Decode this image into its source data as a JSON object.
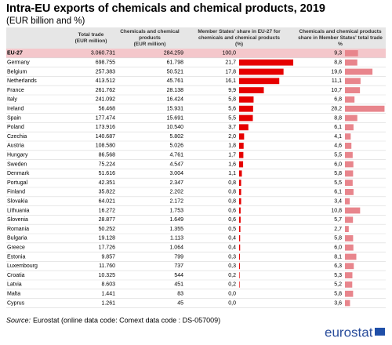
{
  "title": "Intra-EU exports of chemicals and chemical products, 2019",
  "subtitle": "(EUR billion and %)",
  "columns": [
    [
      "Total trade",
      "(EUR million)"
    ],
    [
      "Chemicals and chemical",
      "products",
      "(EUR million)"
    ],
    [
      "Member States' share in EU-27 for",
      "chemicals and chemical products",
      "(%)"
    ],
    [
      "Chemicals and chemical products",
      "share in Member States' total trade",
      "%"
    ]
  ],
  "share_xlim": [
    0,
    22
  ],
  "trade_share_xlim": [
    0,
    28.5
  ],
  "share_color": "#e60000",
  "trade_share_color": "#e8858c",
  "rows": [
    {
      "country": "EU-27",
      "aggregate": true,
      "total": "3.060.731",
      "chemicals": "284.259",
      "share": 100.0,
      "share_label": "100,0",
      "trade_share": 9.3,
      "trade_share_label": "9,3"
    },
    {
      "country": "Germany",
      "total": "698.755",
      "chemicals": "61.798",
      "share": 21.7,
      "share_label": "21,7",
      "trade_share": 8.8,
      "trade_share_label": "8,8"
    },
    {
      "country": "Belgium",
      "total": "257.383",
      "chemicals": "50.521",
      "share": 17.8,
      "share_label": "17,8",
      "trade_share": 19.6,
      "trade_share_label": "19,6"
    },
    {
      "country": "Netherlands",
      "total": "413.512",
      "chemicals": "45.761",
      "share": 16.1,
      "share_label": "16,1",
      "trade_share": 11.1,
      "trade_share_label": "11,1"
    },
    {
      "country": "France",
      "total": "261.762",
      "chemicals": "28.138",
      "share": 9.9,
      "share_label": "9,9",
      "trade_share": 10.7,
      "trade_share_label": "10,7"
    },
    {
      "country": "Italy",
      "total": "241.092",
      "chemicals": "16.424",
      "share": 5.8,
      "share_label": "5,8",
      "trade_share": 6.8,
      "trade_share_label": "6,8"
    },
    {
      "country": "Ireland",
      "total": "56.468",
      "chemicals": "15.931",
      "share": 5.6,
      "share_label": "5,6",
      "trade_share": 28.2,
      "trade_share_label": "28,2"
    },
    {
      "country": "Spain",
      "total": "177.474",
      "chemicals": "15.691",
      "share": 5.5,
      "share_label": "5,5",
      "trade_share": 8.8,
      "trade_share_label": "8,8"
    },
    {
      "country": "Poland",
      "total": "173.916",
      "chemicals": "10.540",
      "share": 3.7,
      "share_label": "3,7",
      "trade_share": 6.1,
      "trade_share_label": "6,1"
    },
    {
      "country": "Czechia",
      "total": "140.687",
      "chemicals": "5.802",
      "share": 2.0,
      "share_label": "2,0",
      "trade_share": 4.1,
      "trade_share_label": "4,1"
    },
    {
      "country": "Austria",
      "total": "108.580",
      "chemicals": "5.026",
      "share": 1.8,
      "share_label": "1,8",
      "trade_share": 4.6,
      "trade_share_label": "4,6"
    },
    {
      "country": "Hungary",
      "total": "86.568",
      "chemicals": "4.761",
      "share": 1.7,
      "share_label": "1,7",
      "trade_share": 5.5,
      "trade_share_label": "5,5"
    },
    {
      "country": "Sweden",
      "total": "75.224",
      "chemicals": "4.547",
      "share": 1.6,
      "share_label": "1,6",
      "trade_share": 6.0,
      "trade_share_label": "6,0"
    },
    {
      "country": "Denmark",
      "total": "51.616",
      "chemicals": "3.004",
      "share": 1.1,
      "share_label": "1,1",
      "trade_share": 5.8,
      "trade_share_label": "5,8"
    },
    {
      "country": "Portugal",
      "total": "42.351",
      "chemicals": "2.347",
      "share": 0.8,
      "share_label": "0,8",
      "trade_share": 5.5,
      "trade_share_label": "5,5"
    },
    {
      "country": "Finland",
      "total": "35.822",
      "chemicals": "2.202",
      "share": 0.8,
      "share_label": "0,8",
      "trade_share": 6.1,
      "trade_share_label": "6,1"
    },
    {
      "country": "Slovakia",
      "total": "64.021",
      "chemicals": "2.172",
      "share": 0.8,
      "share_label": "0,8",
      "trade_share": 3.4,
      "trade_share_label": "3,4"
    },
    {
      "country": "Lithuania",
      "total": "16.272",
      "chemicals": "1.753",
      "share": 0.6,
      "share_label": "0,6",
      "trade_share": 10.8,
      "trade_share_label": "10,8"
    },
    {
      "country": "Slovenia",
      "total": "28.877",
      "chemicals": "1.649",
      "share": 0.6,
      "share_label": "0,6",
      "trade_share": 5.7,
      "trade_share_label": "5,7"
    },
    {
      "country": "Romania",
      "total": "50.252",
      "chemicals": "1.355",
      "share": 0.5,
      "share_label": "0,5",
      "trade_share": 2.7,
      "trade_share_label": "2,7"
    },
    {
      "country": "Bulgaria",
      "total": "19.128",
      "chemicals": "1.113",
      "share": 0.4,
      "share_label": "0,4",
      "trade_share": 5.8,
      "trade_share_label": "5,8"
    },
    {
      "country": "Greece",
      "total": "17.726",
      "chemicals": "1.064",
      "share": 0.4,
      "share_label": "0,4",
      "trade_share": 6.0,
      "trade_share_label": "6,0"
    },
    {
      "country": "Estonia",
      "total": "9.857",
      "chemicals": "799",
      "share": 0.3,
      "share_label": "0,3",
      "trade_share": 8.1,
      "trade_share_label": "8,1"
    },
    {
      "country": "Luxembourg",
      "total": "11.760",
      "chemicals": "737",
      "share": 0.3,
      "share_label": "0,3",
      "trade_share": 6.3,
      "trade_share_label": "6,3"
    },
    {
      "country": "Croatia",
      "total": "10.325",
      "chemicals": "544",
      "share": 0.2,
      "share_label": "0,2",
      "trade_share": 5.3,
      "trade_share_label": "5,3"
    },
    {
      "country": "Latvia",
      "total": "8.603",
      "chemicals": "451",
      "share": 0.2,
      "share_label": "0,2",
      "trade_share": 5.2,
      "trade_share_label": "5,2"
    },
    {
      "country": "Malta",
      "total": "1.441",
      "chemicals": "83",
      "share": 0.0,
      "share_label": "0,0",
      "trade_share": 5.8,
      "trade_share_label": "5,8"
    },
    {
      "country": "Cyprus",
      "total": "1.261",
      "chemicals": "45",
      "share": 0.0,
      "share_label": "0,0",
      "trade_share": 3.6,
      "trade_share_label": "3,6"
    }
  ],
  "source_label": "Source:",
  "source_text": "Eurostat (online data code: Comext data code : DS-057009)",
  "logo": "eurostat"
}
